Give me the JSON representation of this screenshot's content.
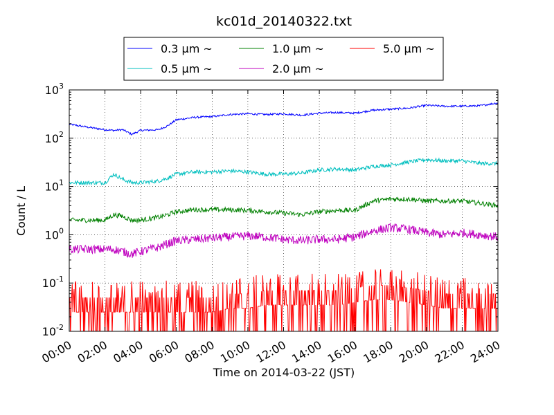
{
  "chart_data": {
    "type": "line",
    "title": "kc01d_20140322.txt",
    "xlabel": "Time on 2014-03-22 (JST)",
    "ylabel": "Count / L",
    "yscale": "log",
    "ylim": [
      0.01,
      1000
    ],
    "xlim": [
      "00:00",
      "24:00"
    ],
    "grid": true,
    "legend_position": "top-center",
    "x_ticks": [
      "00:00",
      "02:00",
      "04:00",
      "06:00",
      "08:00",
      "10:00",
      "12:00",
      "14:00",
      "16:00",
      "18:00",
      "20:00",
      "22:00",
      "24:00"
    ],
    "y_ticks": [
      {
        "value": 0.01,
        "base": "10",
        "exp": "-2"
      },
      {
        "value": 0.1,
        "base": "10",
        "exp": "-1"
      },
      {
        "value": 1,
        "base": "10",
        "exp": "0"
      },
      {
        "value": 10,
        "base": "10",
        "exp": "1"
      },
      {
        "value": 100,
        "base": "10",
        "exp": "2"
      },
      {
        "value": 1000,
        "base": "10",
        "exp": "3"
      }
    ],
    "x": [
      "00:00",
      "01:00",
      "02:00",
      "02:30",
      "03:00",
      "03:30",
      "04:00",
      "05:00",
      "05:30",
      "06:00",
      "07:00",
      "08:00",
      "09:00",
      "10:00",
      "11:00",
      "12:00",
      "13:00",
      "14:00",
      "15:00",
      "16:00",
      "17:00",
      "18:00",
      "19:00",
      "20:00",
      "21:00",
      "22:00",
      "23:00",
      "24:00"
    ],
    "series": [
      {
        "name": "0.3 μm ~",
        "color": "#0000ff",
        "noise": 0.02,
        "values": [
          195,
          170,
          150,
          145,
          150,
          120,
          145,
          150,
          180,
          240,
          270,
          280,
          310,
          320,
          310,
          320,
          300,
          330,
          340,
          330,
          380,
          400,
          420,
          480,
          460,
          460,
          470,
          540
        ]
      },
      {
        "name": "0.5 μm ~",
        "color": "#00bfbf",
        "noise": 0.04,
        "values": [
          12,
          12,
          12,
          18,
          14,
          12,
          12,
          13,
          15,
          18,
          20,
          20,
          21,
          20,
          18,
          18,
          19,
          22,
          23,
          22,
          26,
          28,
          32,
          36,
          34,
          34,
          30,
          30
        ]
      },
      {
        "name": "1.0 μm ~",
        "color": "#008000",
        "noise": 0.05,
        "values": [
          2,
          2,
          2,
          2.6,
          2.4,
          2.0,
          2.0,
          2.3,
          2.6,
          3.0,
          3.3,
          3.3,
          3.3,
          3.2,
          3.0,
          2.8,
          2.6,
          3.0,
          3.2,
          3.2,
          5.0,
          5.5,
          5.5,
          5.0,
          5.0,
          5.0,
          4.5,
          4.0
        ]
      },
      {
        "name": "2.0 μm ~",
        "color": "#bf00bf",
        "noise": 0.09,
        "values": [
          0.5,
          0.5,
          0.5,
          0.5,
          0.45,
          0.4,
          0.45,
          0.55,
          0.65,
          0.75,
          0.8,
          0.85,
          0.9,
          0.95,
          0.9,
          0.8,
          0.75,
          0.8,
          0.8,
          0.9,
          1.2,
          1.4,
          1.3,
          1.1,
          1.0,
          1.1,
          1.0,
          0.9
        ]
      },
      {
        "name": "5.0 μm ~",
        "color": "#ff0000",
        "noise": 0,
        "values": [
          0.025,
          0.025,
          0.025,
          0.025,
          0.025,
          0.025,
          0.025,
          0.025,
          0.025,
          0.025,
          0.025,
          0.025,
          0.03,
          0.03,
          0.035,
          0.035,
          0.035,
          0.035,
          0.035,
          0.04,
          0.045,
          0.045,
          0.04,
          0.035,
          0.03,
          0.03,
          0.03,
          0.03
        ]
      }
    ]
  }
}
